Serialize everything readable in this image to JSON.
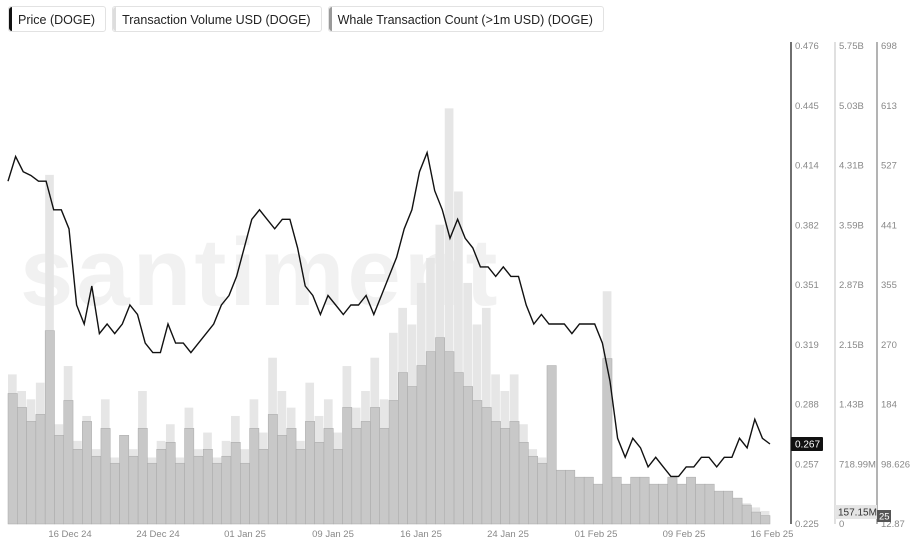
{
  "legend": [
    {
      "label": "Price (DOGE)",
      "color": "#111111"
    },
    {
      "label": "Transaction Volume USD (DOGE)",
      "color": "#dddddd"
    },
    {
      "label": "Whale Transaction Count (>1m USD) (DOGE)",
      "color": "#9a9a9a"
    }
  ],
  "watermark": "santiment",
  "chart_data": {
    "type": "line",
    "x_ticks": [
      "16 Dec 24",
      "24 Dec 24",
      "01 Jan 25",
      "09 Jan 25",
      "16 Jan 25",
      "24 Jan 25",
      "01 Feb 25",
      "09 Feb 25",
      "16 Feb 25"
    ],
    "price_axis": {
      "ticks": [
        "0.476",
        "0.445",
        "0.414",
        "0.382",
        "0.351",
        "0.319",
        "0.288",
        "0.257",
        "0.225"
      ],
      "range": [
        0.225,
        0.476
      ],
      "current_label": "0.267"
    },
    "volume_axis": {
      "ticks": [
        "5.75B",
        "5.03B",
        "4.31B",
        "3.59B",
        "2.87B",
        "2.15B",
        "1.43B",
        "718.99M",
        "0"
      ],
      "current_label": "157.15M"
    },
    "whale_axis": {
      "ticks": [
        "698",
        "613",
        "527",
        "441",
        "355",
        "270",
        "184",
        "98.626",
        "12.87"
      ],
      "range": [
        12.87,
        698
      ],
      "current_label": "25"
    },
    "series": [
      {
        "name": "Price (DOGE)",
        "values": [
          0.405,
          0.418,
          0.41,
          0.408,
          0.405,
          0.405,
          0.39,
          0.39,
          0.38,
          0.34,
          0.33,
          0.35,
          0.325,
          0.33,
          0.325,
          0.33,
          0.34,
          0.335,
          0.32,
          0.315,
          0.315,
          0.33,
          0.32,
          0.32,
          0.315,
          0.32,
          0.325,
          0.33,
          0.34,
          0.345,
          0.355,
          0.37,
          0.385,
          0.39,
          0.385,
          0.38,
          0.385,
          0.385,
          0.37,
          0.35,
          0.345,
          0.335,
          0.345,
          0.34,
          0.335,
          0.34,
          0.34,
          0.345,
          0.335,
          0.345,
          0.355,
          0.365,
          0.38,
          0.39,
          0.41,
          0.42,
          0.4,
          0.39,
          0.375,
          0.385,
          0.375,
          0.37,
          0.36,
          0.36,
          0.355,
          0.36,
          0.355,
          0.355,
          0.34,
          0.33,
          0.335,
          0.33,
          0.33,
          0.33,
          0.325,
          0.33,
          0.33,
          0.33,
          0.32,
          0.3,
          0.27,
          0.26,
          0.27,
          0.265,
          0.255,
          0.26,
          0.255,
          0.25,
          0.25,
          0.255,
          0.255,
          0.26,
          0.26,
          0.255,
          0.26,
          0.26,
          0.27,
          0.265,
          0.28,
          0.27,
          0.267
        ]
      },
      {
        "name": "Transaction Volume USD (DOGE)",
        "values": [
          1.8,
          1.6,
          1.5,
          1.7,
          4.2,
          1.2,
          1.9,
          1.0,
          1.3,
          0.9,
          1.5,
          0.8,
          1.0,
          0.9,
          1.6,
          0.8,
          1.0,
          1.2,
          0.8,
          1.4,
          0.9,
          1.1,
          0.8,
          1.0,
          1.3,
          0.9,
          1.5,
          1.1,
          2.0,
          1.6,
          1.4,
          1.0,
          1.7,
          1.3,
          1.5,
          1.1,
          1.9,
          1.4,
          1.6,
          2.0,
          1.5,
          2.3,
          2.6,
          2.4,
          2.9,
          3.2,
          3.6,
          5.0,
          4.0,
          2.9,
          2.4,
          2.6,
          1.8,
          1.6,
          1.8,
          1.2,
          0.9,
          0.8,
          1.9,
          0.5,
          0.6,
          0.4,
          0.4,
          0.3,
          2.8,
          0.5,
          0.4,
          0.5,
          0.5,
          0.4,
          0.4,
          0.5,
          0.4,
          0.5,
          0.4,
          0.4,
          0.35,
          0.35,
          0.3,
          0.25,
          0.2,
          0.157
        ]
      },
      {
        "name": "Whale Transaction Count (>1m USD) (DOGE)",
        "values": [
          200,
          180,
          160,
          170,
          290,
          140,
          190,
          120,
          160,
          110,
          150,
          100,
          140,
          110,
          150,
          100,
          120,
          130,
          100,
          150,
          110,
          120,
          100,
          110,
          130,
          100,
          150,
          120,
          170,
          140,
          150,
          120,
          160,
          130,
          150,
          120,
          180,
          150,
          160,
          180,
          150,
          190,
          230,
          210,
          240,
          260,
          280,
          260,
          230,
          210,
          190,
          180,
          160,
          150,
          160,
          130,
          110,
          100,
          240,
          90,
          90,
          80,
          80,
          70,
          250,
          80,
          70,
          80,
          80,
          70,
          70,
          80,
          70,
          80,
          70,
          70,
          60,
          60,
          50,
          40,
          30,
          25
        ]
      }
    ]
  }
}
